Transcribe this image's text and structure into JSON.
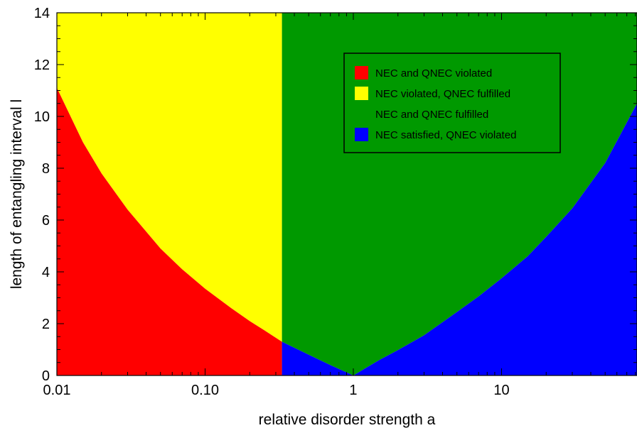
{
  "chart_data": {
    "type": "area",
    "title": "",
    "xlabel": "relative disorder strength a",
    "ylabel": "length of entangling interval l",
    "x_scale": "log",
    "xlim": [
      0.01,
      82
    ],
    "ylim": [
      0,
      14
    ],
    "x_ticks": [
      0.01,
      0.1,
      1,
      10
    ],
    "x_tick_labels": [
      "0.01",
      "0.10",
      "1",
      "10"
    ],
    "y_ticks": [
      0,
      2,
      4,
      6,
      8,
      10,
      12,
      14
    ],
    "y_tick_labels": [
      "0",
      "2",
      "4",
      "6",
      "8",
      "10",
      "12",
      "14"
    ],
    "grid": false,
    "legend_position": "top-right",
    "boundaries": {
      "nec_vertical_line_a": 0.33,
      "lower_boundary_left": {
        "a": [
          0.01,
          0.015,
          0.02,
          0.03,
          0.05,
          0.07,
          0.1,
          0.15,
          0.2,
          0.25,
          0.33
        ],
        "l": [
          11.1,
          9.0,
          7.8,
          6.4,
          4.9,
          4.1,
          3.35,
          2.6,
          2.1,
          1.75,
          1.3
        ]
      },
      "lower_boundary_right": {
        "a": [
          0.33,
          0.5,
          0.7,
          1.0,
          1.5,
          2,
          3,
          5,
          7,
          10,
          15,
          20,
          30,
          50,
          82
        ],
        "l": [
          1.3,
          0.8,
          0.4,
          0.0,
          0.6,
          0.98,
          1.55,
          2.45,
          3.05,
          3.75,
          4.6,
          5.35,
          6.45,
          8.2,
          10.5
        ]
      }
    },
    "regions": [
      {
        "name": "NEC and QNEC violated",
        "color": "#ff0000"
      },
      {
        "name": "NEC violated, QNEC fulfilled",
        "color": "#ffff00"
      },
      {
        "name": "NEC and QNEC fulfilled",
        "color": "#009900"
      },
      {
        "name": "NEC satisfied, QNEC violated",
        "color": "#0000ff"
      }
    ]
  }
}
